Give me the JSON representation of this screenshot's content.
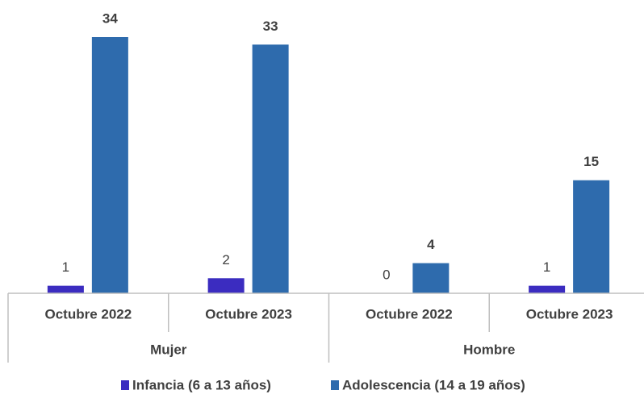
{
  "chart_data": {
    "type": "bar",
    "groups": [
      "Mujer",
      "Hombre"
    ],
    "categories": [
      "Octubre 2022",
      "Octubre 2023",
      "Octubre 2022",
      "Octubre 2023"
    ],
    "series": [
      {
        "name": "Infancia (6 a 13 años)",
        "color": "#3b2cc0",
        "values": [
          1,
          2,
          0,
          1
        ]
      },
      {
        "name": "Adolescencia (14 a 19 años)",
        "color": "#2e6bad",
        "values": [
          34,
          33,
          4,
          15
        ]
      }
    ],
    "legend": "bottom"
  }
}
